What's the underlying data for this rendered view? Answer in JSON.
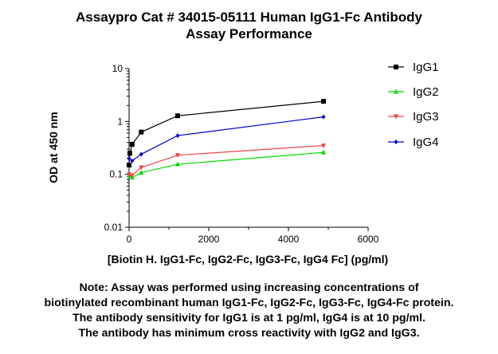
{
  "chart_data": {
    "type": "line",
    "title": "Assaypro Cat # 34015-05111 Human IgG1-Fc Antibody",
    "subtitle": "Assay Performance",
    "xlabel": "[Biotin H. IgG1-Fc, IgG2-Fc, IgG3-Fc, IgG4 Fc] (pg/ml)",
    "ylabel": "OD at 450 nm",
    "xlim": [
      0,
      6000
    ],
    "ylim": [
      0.01,
      10
    ],
    "yscale": "log",
    "x_ticks": [
      "0",
      "2000",
      "4000",
      "6000"
    ],
    "y_ticks": [
      "0.01",
      "0.1",
      "1",
      "10"
    ],
    "legend_position": "right",
    "grid": false,
    "series": [
      {
        "name": "IgG1",
        "color": "#000000",
        "marker": "square",
        "x": [
          0,
          19,
          76,
          305,
          1220,
          4880
        ],
        "y": [
          0.15,
          0.25,
          0.37,
          0.63,
          1.28,
          2.4
        ]
      },
      {
        "name": "IgG2",
        "color": "#00dd00",
        "marker": "triangle-up",
        "x": [
          0,
          76,
          305,
          1220,
          4880
        ],
        "y": [
          0.095,
          0.087,
          0.108,
          0.155,
          0.26
        ]
      },
      {
        "name": "IgG3",
        "color": "#ee4444",
        "marker": "triangle-down",
        "x": [
          0,
          76,
          305,
          1220,
          4880
        ],
        "y": [
          0.1,
          0.095,
          0.135,
          0.23,
          0.35
        ]
      },
      {
        "name": "IgG4",
        "color": "#0000cc",
        "marker": "diamond",
        "x": [
          0,
          76,
          305,
          1220,
          4880
        ],
        "y": [
          0.2,
          0.18,
          0.24,
          0.54,
          1.22
        ]
      }
    ]
  },
  "note": {
    "lines": [
      "Note: Assay was performed using increasing concentrations of",
      "biotinylated recombinant human IgG1-Fc, IgG2-Fc, IgG3-Fc, IgG4-Fc protein.",
      "The antibody sensitivity for IgG1 is at 1 pg/ml, IgG4 is at 10 pg/ml.",
      "The antibody has minimum cross reactivity with IgG2 and IgG3."
    ]
  }
}
